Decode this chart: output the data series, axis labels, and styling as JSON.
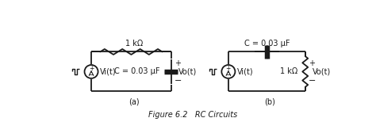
{
  "background_color": "#ffffff",
  "figure_caption": "Figure 6.2   RC Circuits",
  "caption_fontstyle": "italic",
  "caption_fontsize": 7.0,
  "label_a": "(a)",
  "label_b": "(b)",
  "circuit_a": {
    "resistor_label": "1 kΩ",
    "capacitor_label": "C = 0.03 μF",
    "source_label": "Vi(t)",
    "output_label": "Vo(t)",
    "plus": "+",
    "minus": "−"
  },
  "circuit_b": {
    "capacitor_label": "C = 0.03 μF",
    "resistor_label": "1 kΩ",
    "source_label": "Vi(t)",
    "output_label": "Vo(t)",
    "plus": "+",
    "minus": "−"
  },
  "line_color": "#1a1a1a",
  "line_width": 1.3,
  "font_size": 7.0
}
